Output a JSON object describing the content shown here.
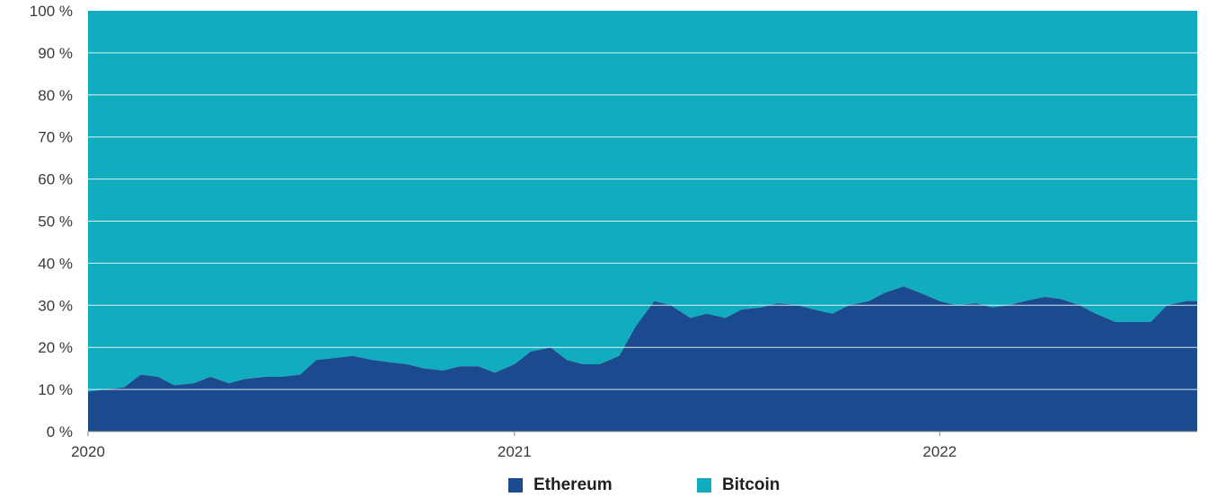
{
  "chart_data": {
    "type": "area",
    "stacked": true,
    "percent": true,
    "grid": true,
    "legend_position": "bottom",
    "ylim": [
      0,
      100
    ],
    "y_ticks": [
      "0 %",
      "10 %",
      "20 %",
      "30 %",
      "40 %",
      "50 %",
      "60 %",
      "70 %",
      "80 %",
      "90 %",
      "100 %"
    ],
    "x_ticks": [
      "2020",
      "2021",
      "2022"
    ],
    "xlim": [
      "2020-01-01",
      "2022-08-10"
    ],
    "x": [
      "2020-01-01",
      "2020-01-15",
      "2020-02-01",
      "2020-02-15",
      "2020-03-01",
      "2020-03-15",
      "2020-04-01",
      "2020-04-15",
      "2020-05-01",
      "2020-05-15",
      "2020-06-01",
      "2020-06-15",
      "2020-07-01",
      "2020-07-15",
      "2020-08-01",
      "2020-08-15",
      "2020-09-01",
      "2020-09-15",
      "2020-10-01",
      "2020-10-15",
      "2020-11-01",
      "2020-11-15",
      "2020-12-01",
      "2020-12-15",
      "2021-01-01",
      "2021-01-15",
      "2021-02-01",
      "2021-02-15",
      "2021-03-01",
      "2021-03-15",
      "2021-04-01",
      "2021-04-15",
      "2021-05-01",
      "2021-05-15",
      "2021-06-01",
      "2021-06-15",
      "2021-07-01",
      "2021-07-15",
      "2021-08-01",
      "2021-08-15",
      "2021-09-01",
      "2021-09-15",
      "2021-10-01",
      "2021-10-15",
      "2021-11-01",
      "2021-11-15",
      "2021-12-01",
      "2021-12-15",
      "2022-01-01",
      "2022-01-15",
      "2022-02-01",
      "2022-02-15",
      "2022-03-01",
      "2022-03-15",
      "2022-04-01",
      "2022-04-15",
      "2022-05-01",
      "2022-05-15",
      "2022-06-01",
      "2022-06-15",
      "2022-07-01",
      "2022-07-15",
      "2022-08-01",
      "2022-08-10"
    ],
    "series": [
      {
        "name": "Ethereum",
        "color": "#1b4a8e",
        "values": [
          9.5,
          10,
          10.5,
          13.5,
          13,
          11,
          11.5,
          13,
          11.5,
          12.5,
          13,
          13,
          13.5,
          17,
          17.5,
          18,
          17,
          16.5,
          16,
          15,
          14.5,
          15.5,
          15.5,
          14,
          16,
          19,
          20,
          17,
          16,
          16,
          18,
          25,
          31,
          30,
          27,
          28,
          27,
          29,
          29.5,
          30.5,
          30,
          29,
          28,
          30,
          31,
          33,
          34.5,
          33,
          31,
          30,
          30.5,
          29.5,
          30,
          31,
          32,
          31.5,
          30,
          28,
          26,
          26,
          26,
          30,
          31,
          31
        ]
      },
      {
        "name": "Bitcoin",
        "color": "#11adbf",
        "values": [
          90.5,
          90,
          89.5,
          86.5,
          87,
          89,
          88.5,
          87,
          88.5,
          87.5,
          87,
          87,
          86.5,
          83,
          82.5,
          82,
          83,
          83.5,
          84,
          85,
          85.5,
          84.5,
          84.5,
          86,
          84,
          81,
          80,
          83,
          84,
          84,
          82,
          75,
          69,
          70,
          73,
          72,
          73,
          71,
          70.5,
          69.5,
          70,
          71,
          72,
          70,
          69,
          67,
          65.5,
          67,
          69,
          70,
          69.5,
          70.5,
          70,
          69,
          68,
          68.5,
          70,
          72,
          74,
          74,
          74,
          70,
          69,
          69
        ]
      }
    ]
  }
}
